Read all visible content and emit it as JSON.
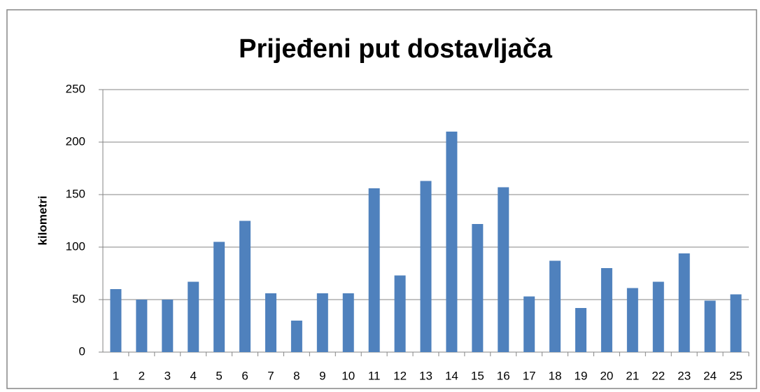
{
  "chart_data": {
    "type": "bar",
    "title": "Prijeđeni put dostavljača",
    "y_label": "kilometri",
    "categories": [
      "1",
      "2",
      "3",
      "4",
      "5",
      "6",
      "7",
      "8",
      "9",
      "10",
      "11",
      "12",
      "13",
      "14",
      "15",
      "16",
      "17",
      "18",
      "19",
      "20",
      "21",
      "22",
      "23",
      "24",
      "25"
    ],
    "values": [
      60,
      50,
      50,
      67,
      105,
      125,
      56,
      30,
      56,
      56,
      156,
      73,
      163,
      210,
      122,
      157,
      53,
      87,
      42,
      80,
      61,
      67,
      94,
      49,
      55
    ],
    "color": "#4f81bd",
    "ylim": [
      0,
      250
    ],
    "yticks": [
      0,
      50,
      100,
      150,
      200,
      250
    ],
    "grid": true
  }
}
